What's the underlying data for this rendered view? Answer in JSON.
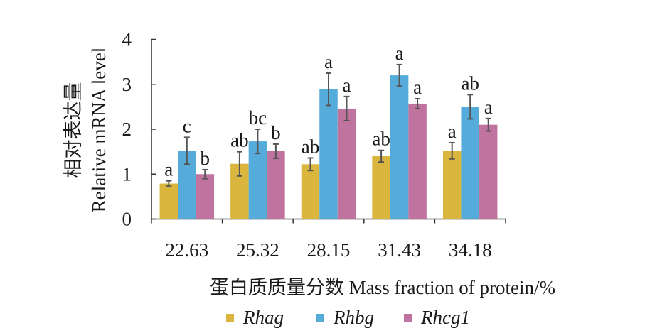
{
  "chart_data": {
    "type": "bar",
    "title": "",
    "xlabel": "蛋白质质量分数 Mass fraction of protein/%",
    "ylabel_cn": "相对表达量",
    "ylabel": "Relative mRNA level",
    "ylim": [
      0,
      4
    ],
    "yticks": [
      "0",
      "1",
      "2",
      "3",
      "4"
    ],
    "categories": [
      "22.63",
      "25.32",
      "28.15",
      "31.43",
      "34.18"
    ],
    "legend_position": "bottom",
    "series": [
      {
        "name": "Rhag",
        "color": "#dab63e",
        "values": [
          0.79,
          1.23,
          1.22,
          1.4,
          1.52
        ],
        "errors": [
          0.06,
          0.27,
          0.14,
          0.13,
          0.18
        ],
        "letters": [
          "a",
          "ab",
          "ab",
          "ab",
          "a"
        ]
      },
      {
        "name": "Rhbg",
        "color": "#55acda",
        "values": [
          1.52,
          1.73,
          2.89,
          3.2,
          2.5
        ],
        "errors": [
          0.3,
          0.27,
          0.36,
          0.24,
          0.27
        ],
        "letters": [
          "c",
          "bc",
          "a",
          "a",
          "ab"
        ]
      },
      {
        "name": "Rhcg1",
        "color": "#c0739f",
        "values": [
          1.0,
          1.51,
          2.46,
          2.57,
          2.1
        ],
        "errors": [
          0.1,
          0.16,
          0.27,
          0.11,
          0.14
        ],
        "letters": [
          "b",
          "b",
          "a",
          "a",
          "a"
        ]
      }
    ]
  }
}
